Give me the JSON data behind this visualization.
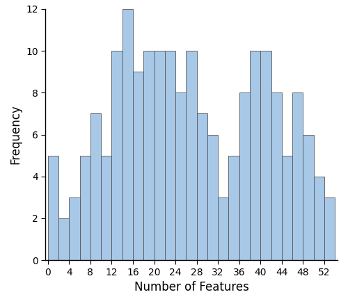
{
  "bin_edges": [
    0,
    2,
    4,
    6,
    8,
    10,
    12,
    14,
    16,
    18,
    20,
    22,
    24,
    26,
    28,
    30,
    32,
    34,
    36,
    38,
    40,
    42,
    44,
    46,
    48,
    50,
    52,
    54
  ],
  "frequencies": [
    5,
    2,
    3,
    5,
    7,
    5,
    10,
    12,
    9,
    10,
    10,
    10,
    8,
    10,
    7,
    6,
    3,
    5,
    8,
    10,
    10,
    8,
    5,
    8,
    6,
    4,
    3
  ],
  "bar_color": "#a8c8e8",
  "edge_color": "#555555",
  "xlabel": "Number of Features",
  "ylabel": "Frequency",
  "xlim": [
    -0.5,
    54.5
  ],
  "ylim": [
    0,
    12
  ],
  "xticks": [
    0,
    4,
    8,
    12,
    16,
    20,
    24,
    28,
    32,
    36,
    40,
    44,
    48,
    52
  ],
  "yticks": [
    0,
    2,
    4,
    6,
    8,
    10,
    12
  ],
  "xlabel_fontsize": 12,
  "ylabel_fontsize": 12,
  "tick_fontsize": 10,
  "edge_linewidth": 0.6
}
